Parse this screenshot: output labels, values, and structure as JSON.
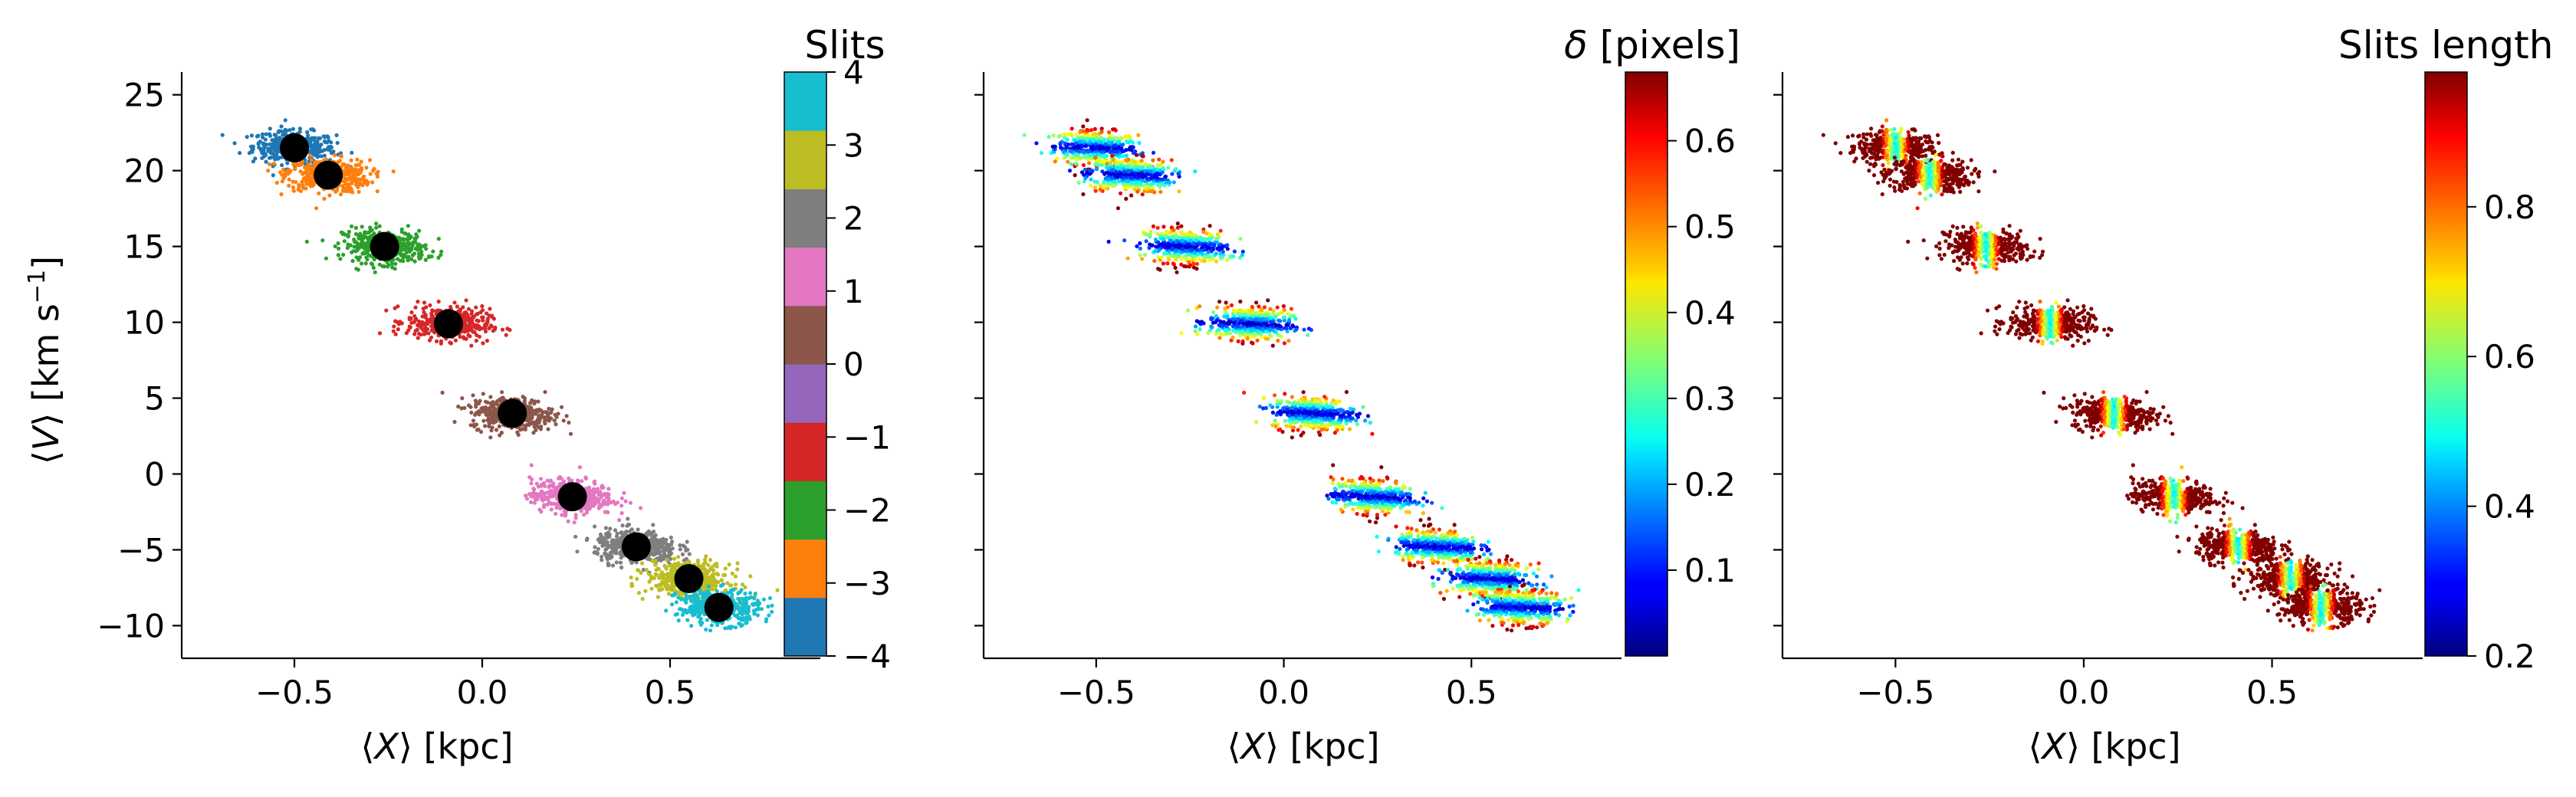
{
  "chart_data": [
    {
      "type": "scatter",
      "panel": "left",
      "xlabel_pre": "⟨",
      "xlabel_var": "X",
      "xlabel_post": "⟩ [kpc]",
      "ylabel_pre": "⟨",
      "ylabel_var": "V",
      "ylabel_post": "⟩ [km s",
      "ylabel_sup": "−1",
      "ylabel_end": "]",
      "xlim": [
        -0.8,
        0.9
      ],
      "ylim": [
        -12,
        26.5
      ],
      "xticks": [
        -0.5,
        0.0,
        0.5
      ],
      "xtick_labels": [
        "−0.5",
        "0.0",
        "0.5"
      ],
      "yticks": [
        -10,
        -5,
        0,
        5,
        10,
        15,
        20,
        25
      ],
      "ytick_labels": [
        "−10",
        "−5",
        "0",
        "5",
        "10",
        "15",
        "20",
        "25"
      ],
      "colorbar": {
        "title": "Slits",
        "type": "discrete",
        "ticks": [
          -4,
          -3,
          -2,
          -1,
          0,
          1,
          2,
          3,
          4
        ],
        "tick_labels": [
          "−4",
          "−3",
          "−2",
          "−1",
          "0",
          "1",
          "2",
          "3",
          "4"
        ],
        "colors": [
          "#1f77b4",
          "#ff7f0e",
          "#2ca02c",
          "#d62728",
          "#9467bd",
          "#8c564b",
          "#e377c2",
          "#7f7f7f",
          "#bcbd22",
          "#17becf"
        ]
      },
      "series": [
        {
          "slit": -4,
          "color": "#1f77b4",
          "center_x": -0.5,
          "center_y": 21.5
        },
        {
          "slit": -3,
          "color": "#ff7f0e",
          "center_x": -0.41,
          "center_y": 19.7
        },
        {
          "slit": -2,
          "color": "#2ca02c",
          "center_x": -0.26,
          "center_y": 15.0
        },
        {
          "slit": -1,
          "color": "#d62728",
          "center_x": -0.09,
          "center_y": 9.9
        },
        {
          "slit": 0,
          "color": "#8c564b",
          "center_x": 0.08,
          "center_y": 4.0
        },
        {
          "slit": 1,
          "color": "#e377c2",
          "center_x": 0.24,
          "center_y": -1.5
        },
        {
          "slit": 2,
          "color": "#7f7f7f",
          "center_x": 0.41,
          "center_y": -4.8
        },
        {
          "slit": 3,
          "color": "#bcbd22",
          "center_x": 0.55,
          "center_y": -6.9
        },
        {
          "slit": 4,
          "color": "#17becf",
          "center_x": 0.63,
          "center_y": -8.8
        }
      ],
      "markers": {
        "color": "#000000",
        "x": [
          -0.5,
          -0.41,
          -0.26,
          -0.09,
          0.08,
          0.24,
          0.41,
          0.55,
          0.63
        ],
        "y": [
          21.5,
          19.7,
          15.0,
          9.9,
          4.0,
          -1.5,
          -4.8,
          -6.9,
          -8.8
        ]
      }
    },
    {
      "type": "scatter",
      "panel": "middle",
      "xlabel_pre": "⟨",
      "xlabel_var": "X",
      "xlabel_post": "⟩ [kpc]",
      "xlim": [
        -0.8,
        0.9
      ],
      "ylim": [
        -12,
        26.5
      ],
      "xticks": [
        -0.5,
        0.0,
        0.5
      ],
      "xtick_labels": [
        "−0.5",
        "0.0",
        "0.5"
      ],
      "colorbar": {
        "title_var": "δ",
        "title_post": " [pixels]",
        "type": "continuous",
        "colormap": "jet",
        "range": [
          0.0,
          0.68
        ],
        "ticks": [
          0.1,
          0.2,
          0.3,
          0.4,
          0.5,
          0.6
        ],
        "tick_labels": [
          "0.1",
          "0.2",
          "0.3",
          "0.4",
          "0.5",
          "0.6"
        ]
      },
      "color_mode": "delta"
    },
    {
      "type": "scatter",
      "panel": "right",
      "xlabel_pre": "⟨",
      "xlabel_var": "X",
      "xlabel_post": "⟩ [kpc]",
      "xlim": [
        -0.8,
        0.9
      ],
      "ylim": [
        -12,
        26.5
      ],
      "xticks": [
        -0.5,
        0.0,
        0.5
      ],
      "xtick_labels": [
        "−0.5",
        "0.0",
        "0.5"
      ],
      "colorbar": {
        "title": "Slits length",
        "type": "continuous",
        "colormap": "jet",
        "range": [
          0.2,
          0.98
        ],
        "ticks": [
          0.2,
          0.4,
          0.6,
          0.8
        ],
        "tick_labels": [
          "0.2",
          "0.4",
          "0.6",
          "0.8"
        ]
      },
      "color_mode": "length"
    }
  ]
}
